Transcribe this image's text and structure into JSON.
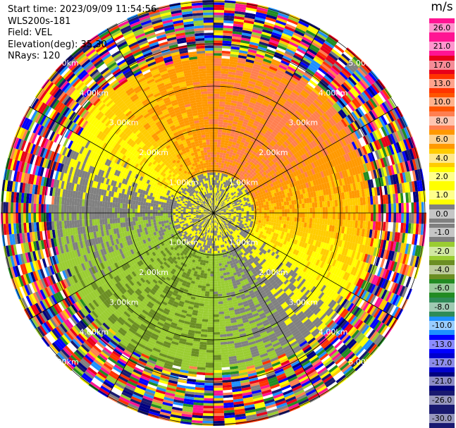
{
  "header": {
    "start_time": "Start time: 2023/09/09 11:54:56",
    "instrument": "WLS200s-181",
    "field": "Field: VEL",
    "elevation": "Elevation(deg): 35.30",
    "nrays": "NRays: 120"
  },
  "colorbar": {
    "unit": "m/s",
    "ticks": [
      "26.0",
      "21.0",
      "17.0",
      "13.0",
      "10.0",
      "8.0",
      "6.0",
      "4.0",
      "2.0",
      "1.0",
      "0.0",
      "-1.0",
      "-2.0",
      "-4.0",
      "-6.0",
      "-8.0",
      "-10.0",
      "-13.0",
      "-17.0",
      "-21.0",
      "-26.0",
      "-30.0"
    ],
    "colors": [
      "#ff1493",
      "#ff1493",
      "#e8001a",
      "#ff3300",
      "#ff5500",
      "#ff7f50",
      "#ff9900",
      "#ffcc00",
      "#ffff00",
      "#ffff00",
      "#808080",
      "#808080",
      "#9acd32",
      "#6b8e23",
      "#228b22",
      "#2e8b57",
      "#1e90ff",
      "#0000ff",
      "#0000cd",
      "#000080",
      "#191970",
      "#191970"
    ]
  },
  "chart_data": {
    "type": "heatmap",
    "title": "",
    "field": "VEL",
    "units": "m/s",
    "nrays": 120,
    "elevation_deg": 35.3,
    "range_rings_km": [
      1.0,
      2.0,
      3.0,
      4.0,
      5.0
    ],
    "ring_labels": [
      "1.00km",
      "2.00km",
      "3.00km",
      "4.00km",
      "5.00km"
    ],
    "radial_lines_deg": [
      0,
      30,
      60,
      90,
      120,
      150,
      180,
      210,
      240,
      270,
      300,
      330
    ],
    "color_scale": [
      -30,
      26
    ],
    "velocity_pattern": {
      "north_sector_m_s": [
        4,
        8
      ],
      "east_sector_m_s": [
        2,
        6
      ],
      "south_sector_m_s": [
        -8,
        -2
      ],
      "west_sector_m_s": [
        -4,
        0
      ],
      "near_center_m_s": [
        -1,
        1
      ],
      "noise_beyond_km": 3.6
    }
  }
}
